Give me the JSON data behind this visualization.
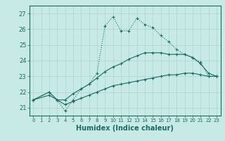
{
  "title": "",
  "xlabel": "Humidex (Indice chaleur)",
  "bg_color": "#c8eae6",
  "grid_color": "#aad4ce",
  "line_color": "#1a6b62",
  "xlim": [
    -0.5,
    23.5
  ],
  "ylim": [
    20.5,
    27.5
  ],
  "yticks": [
    21,
    22,
    23,
    24,
    25,
    26,
    27
  ],
  "xticks": [
    0,
    1,
    2,
    3,
    4,
    5,
    6,
    7,
    8,
    9,
    10,
    11,
    12,
    13,
    14,
    15,
    16,
    17,
    18,
    19,
    20,
    21,
    22,
    23
  ],
  "line1_x": [
    0,
    2,
    3,
    4,
    5,
    6,
    7,
    8,
    9,
    10,
    11,
    12,
    13,
    14,
    15,
    16,
    17,
    18,
    19,
    20,
    21,
    22,
    23
  ],
  "line1_y": [
    21.5,
    22.0,
    21.5,
    20.8,
    21.5,
    22.2,
    22.5,
    23.2,
    26.2,
    26.8,
    25.9,
    25.9,
    26.7,
    26.3,
    26.1,
    25.6,
    25.2,
    24.7,
    24.4,
    24.2,
    23.9,
    23.0,
    23.0
  ],
  "line2_x": [
    0,
    2,
    3,
    4,
    5,
    6,
    7,
    8,
    9,
    10,
    11,
    12,
    13,
    14,
    15,
    16,
    17,
    18,
    19,
    20,
    21,
    22,
    23
  ],
  "line2_y": [
    21.5,
    22.0,
    21.5,
    21.5,
    21.9,
    22.2,
    22.5,
    22.9,
    23.3,
    23.6,
    23.8,
    24.1,
    24.3,
    24.5,
    24.5,
    24.5,
    24.4,
    24.4,
    24.4,
    24.2,
    23.8,
    23.2,
    23.0
  ],
  "line3_x": [
    0,
    2,
    3,
    4,
    5,
    6,
    7,
    8,
    9,
    10,
    11,
    12,
    13,
    14,
    15,
    16,
    17,
    18,
    19,
    20,
    21,
    22,
    23
  ],
  "line3_y": [
    21.5,
    21.8,
    21.5,
    21.2,
    21.4,
    21.6,
    21.8,
    22.0,
    22.2,
    22.4,
    22.5,
    22.6,
    22.7,
    22.8,
    22.9,
    23.0,
    23.1,
    23.1,
    23.2,
    23.2,
    23.1,
    23.0,
    23.0
  ]
}
